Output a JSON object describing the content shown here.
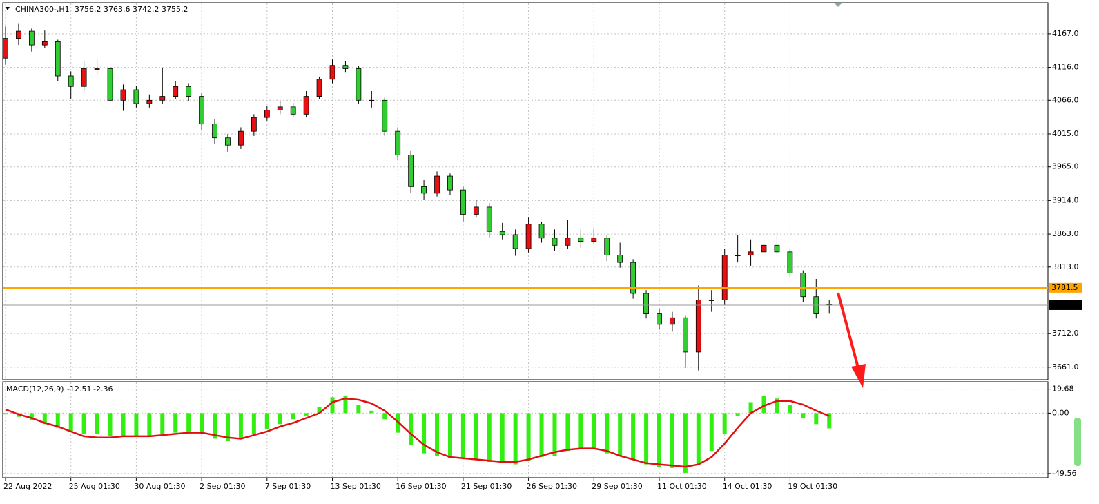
{
  "chart_data": {
    "type": "candlestick",
    "symbol": "CHINA300-,H1",
    "x_labels": [
      "22 Aug 2022",
      null,
      null,
      null,
      null,
      "25 Aug 01:30",
      null,
      null,
      null,
      null,
      "30 Aug 01:30",
      null,
      null,
      null,
      null,
      "2 Sep 01:30",
      null,
      null,
      null,
      null,
      "7 Sep 01:30",
      null,
      null,
      null,
      null,
      "13 Sep 01:30",
      null,
      null,
      null,
      null,
      "16 Sep 01:30",
      null,
      null,
      null,
      null,
      "21 Sep 01:30",
      null,
      null,
      null,
      null,
      "26 Sep 01:30",
      null,
      null,
      null,
      null,
      "29 Sep 01:30",
      null,
      null,
      null,
      null,
      "11 Oct 01:30",
      null,
      null,
      null,
      null,
      "14 Oct 01:30",
      null,
      null,
      null,
      null,
      "19 Oct 01:30",
      null,
      null,
      null
    ],
    "candles": [
      [
        4130,
        4178,
        4120,
        4160
      ],
      [
        4160,
        4182,
        4150,
        4171
      ],
      [
        4171,
        4175,
        4140,
        4150
      ],
      [
        4150,
        4172,
        4145,
        4155
      ],
      [
        4155,
        4158,
        4095,
        4103
      ],
      [
        4103,
        4110,
        4068,
        4087
      ],
      [
        4087,
        4125,
        4080,
        4114
      ],
      [
        4114,
        4128,
        4105,
        4114
      ],
      [
        4114,
        4118,
        4058,
        4066
      ],
      [
        4066,
        4090,
        4050,
        4082
      ],
      [
        4082,
        4088,
        4055,
        4061
      ],
      [
        4061,
        4075,
        4055,
        4066
      ],
      [
        4066,
        4115,
        4060,
        4072
      ],
      [
        4072,
        4095,
        4068,
        4087
      ],
      [
        4087,
        4092,
        4065,
        4072
      ],
      [
        4072,
        4078,
        4020,
        4030
      ],
      [
        4030,
        4038,
        4000,
        4009
      ],
      [
        4009,
        4015,
        3988,
        3998
      ],
      [
        3998,
        4025,
        3992,
        4019
      ],
      [
        4019,
        4045,
        4012,
        4040
      ],
      [
        4040,
        4058,
        4035,
        4051
      ],
      [
        4051,
        4065,
        4045,
        4056
      ],
      [
        4056,
        4062,
        4040,
        4045
      ],
      [
        4045,
        4080,
        4040,
        4072
      ],
      [
        4072,
        4102,
        4068,
        4098
      ],
      [
        4098,
        4128,
        4092,
        4119
      ],
      [
        4119,
        4125,
        4108,
        4114
      ],
      [
        4114,
        4118,
        4060,
        4066
      ],
      [
        4066,
        4080,
        4055,
        4066
      ],
      [
        4066,
        4070,
        4012,
        4019
      ],
      [
        4019,
        4025,
        3975,
        3983
      ],
      [
        3983,
        3990,
        3925,
        3935
      ],
      [
        3935,
        3945,
        3915,
        3925
      ],
      [
        3925,
        3958,
        3920,
        3951
      ],
      [
        3951,
        3955,
        3922,
        3930
      ],
      [
        3930,
        3935,
        3882,
        3893
      ],
      [
        3893,
        3915,
        3888,
        3904
      ],
      [
        3904,
        3910,
        3858,
        3867
      ],
      [
        3867,
        3880,
        3855,
        3862
      ],
      [
        3862,
        3870,
        3830,
        3841
      ],
      [
        3841,
        3888,
        3835,
        3878
      ],
      [
        3878,
        3882,
        3850,
        3857
      ],
      [
        3857,
        3870,
        3838,
        3846
      ],
      [
        3846,
        3885,
        3840,
        3857
      ],
      [
        3857,
        3870,
        3842,
        3852
      ],
      [
        3852,
        3872,
        3848,
        3857
      ],
      [
        3857,
        3862,
        3822,
        3831
      ],
      [
        3831,
        3850,
        3812,
        3820
      ],
      [
        3820,
        3825,
        3765,
        3773
      ],
      [
        3773,
        3778,
        3735,
        3742
      ],
      [
        3742,
        3750,
        3718,
        3726
      ],
      [
        3726,
        3745,
        3715,
        3736
      ],
      [
        3736,
        3740,
        3660,
        3684
      ],
      [
        3684,
        3785,
        3656,
        3763
      ],
      [
        3763,
        3778,
        3745,
        3763
      ],
      [
        3763,
        3840,
        3755,
        3831
      ],
      [
        3831,
        3862,
        3820,
        3831
      ],
      [
        3831,
        3855,
        3815,
        3836
      ],
      [
        3836,
        3865,
        3828,
        3846
      ],
      [
        3846,
        3866,
        3830,
        3836
      ],
      [
        3836,
        3840,
        3798,
        3804
      ],
      [
        3804,
        3808,
        3760,
        3768
      ],
      [
        3768,
        3795,
        3735,
        3742
      ],
      [
        3756.2,
        3763.6,
        3742.2,
        3755.2
      ]
    ],
    "up_color": "#e81010",
    "down_color": "#32cd32",
    "ylim": [
      3642,
      4213
    ],
    "yticks": [
      {
        "value": 4167,
        "label": "4167.0"
      },
      {
        "value": 4116,
        "label": "4116.0"
      },
      {
        "value": 4066,
        "label": "4066.0"
      },
      {
        "value": 4015,
        "label": "4015.0"
      },
      {
        "value": 3965,
        "label": "3965.0"
      },
      {
        "value": 3914,
        "label": "3914.0"
      },
      {
        "value": 3863,
        "label": "3863.0"
      },
      {
        "value": 3813,
        "label": "3813.0"
      },
      {
        "value": 3712,
        "label": "3712.0"
      },
      {
        "value": 3661,
        "label": "3661.0"
      }
    ],
    "hline": 3781.5,
    "hline_color": "#ffa500",
    "grid": true,
    "macd": {
      "label": "MACD(12,26,9)",
      "histogram": [
        -1,
        -3,
        -6,
        -9,
        -12,
        -15,
        -17,
        -17,
        -19,
        -19,
        -19,
        -19,
        -17,
        -16,
        -16,
        -17,
        -21,
        -23,
        -21,
        -17,
        -13,
        -9,
        -5,
        -2,
        5,
        13,
        14,
        7,
        2,
        -5,
        -16,
        -26,
        -33,
        -35,
        -37,
        -37,
        -38,
        -40,
        -40,
        -42,
        -39,
        -36,
        -35,
        -31,
        -29,
        -29,
        -33,
        -35,
        -38,
        -42,
        -44,
        -45,
        -49,
        -42,
        -31,
        -17,
        -2,
        9,
        14,
        12,
        7,
        -4,
        -9,
        -12.51
      ],
      "signal": [
        3,
        -1,
        -4,
        -8,
        -11,
        -15,
        -19,
        -20,
        -20,
        -19,
        -19,
        -19,
        -18,
        -17,
        -16,
        -16,
        -18,
        -20,
        -21,
        -18,
        -15,
        -11,
        -8,
        -4,
        0,
        9,
        12,
        11,
        8,
        2,
        -7,
        -17,
        -26,
        -32,
        -36,
        -37,
        -38,
        -39,
        -40,
        -40,
        -38,
        -35,
        -32,
        -30,
        -29,
        -29,
        -31,
        -35,
        -38,
        -41,
        -42,
        -43,
        -44,
        -42,
        -36,
        -25,
        -12,
        0,
        6,
        10,
        10,
        7,
        2,
        -2.36
      ],
      "histogram_color": "#33ee11",
      "signal_color": "#e01010",
      "ylim": [
        -53,
        24
      ],
      "yticks": [
        19.68,
        {
          "value": 0,
          "label": "0.00"
        },
        -49.56
      ]
    }
  }
}
